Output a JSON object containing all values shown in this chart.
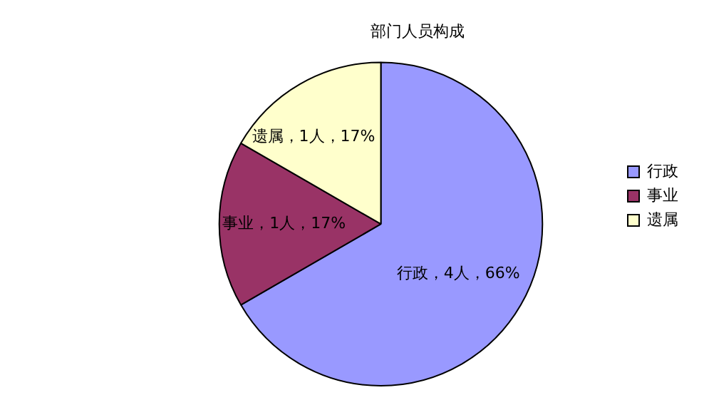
{
  "chart_data": {
    "type": "pie",
    "title": "部门人员构成",
    "categories": [
      "行政",
      "事业",
      "遗属"
    ],
    "values": [
      4,
      1,
      1
    ],
    "colors": [
      "#9999ff",
      "#993366",
      "#ffffcc"
    ],
    "value_labels": [
      "行政，4人，66%",
      "事业，1人，17%",
      "遗属，1人，17%"
    ],
    "legend": "right"
  }
}
